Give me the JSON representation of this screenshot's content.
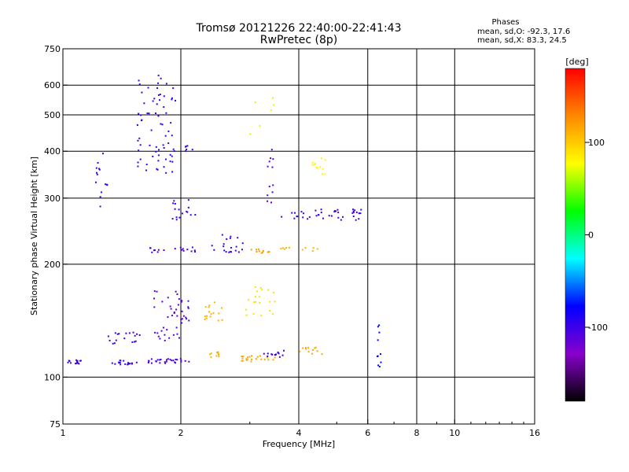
{
  "chart_data": {
    "type": "scatter",
    "title": "Tromsø 20121226 22:40:00-22:41:43",
    "subtitle": "RwPretec (8p)",
    "xlabel": "Frequency [MHz]",
    "ylabel": "Stationary phase Virtual Height [km]",
    "x_scale": "log",
    "y_scale": "log",
    "xlim": [
      1,
      16
    ],
    "ylim": [
      75,
      750
    ],
    "grid": true,
    "x_ticks": [
      1,
      2,
      4,
      6,
      8,
      10,
      16
    ],
    "x_tick_labels": [
      "1",
      "2",
      "4",
      "6",
      "8",
      "10",
      "16"
    ],
    "x_grid": [
      2,
      4,
      6,
      8,
      10
    ],
    "y_ticks": [
      75,
      100,
      200,
      300,
      400,
      500,
      600,
      750
    ],
    "y_tick_labels": [
      "75",
      "100",
      "200",
      "300",
      "400",
      "500",
      "600",
      "750"
    ],
    "y_grid": [
      100,
      200,
      300,
      400,
      500,
      600
    ],
    "stats": {
      "heading": "Phases",
      "line_o": "mean, sd,O: -92.3, 17.6",
      "line_x": "mean, sd,X: 83.3, 24.5"
    },
    "colorbar": {
      "label": "[deg]",
      "range": [
        -180,
        180
      ],
      "ticks": [
        100,
        0,
        -100
      ],
      "tick_labels": [
        "100",
        "0",
        "-100"
      ],
      "colormap": "rainbow",
      "stops": [
        "#000000",
        "#8800cc",
        "#0000ff",
        "#00ffff",
        "#00ff00",
        "#ffff00",
        "#ff8800",
        "#ff0000"
      ]
    },
    "series_note_color_encodes": "phase_deg",
    "point_groups": [
      {
        "x_range": [
          1.02,
          1.12
        ],
        "y_range": [
          108,
          111
        ],
        "phase": -100,
        "count": 14
      },
      {
        "x_range": [
          1.3,
          1.55
        ],
        "y_range": [
          108,
          111
        ],
        "phase": -100,
        "count": 18
      },
      {
        "x_range": [
          1.65,
          2.1
        ],
        "y_range": [
          108,
          112
        ],
        "phase": -105,
        "count": 28
      },
      {
        "x_range": [
          2.3,
          2.6
        ],
        "y_range": [
          113,
          117
        ],
        "phase": 110,
        "count": 10
      },
      {
        "x_range": [
          2.8,
          3.5
        ],
        "y_range": [
          110,
          114
        ],
        "phase": 115,
        "count": 22
      },
      {
        "x_range": [
          3.2,
          3.7
        ],
        "y_range": [
          113,
          118
        ],
        "phase": -100,
        "count": 14
      },
      {
        "x_range": [
          4.0,
          4.6
        ],
        "y_range": [
          115,
          120
        ],
        "phase": 115,
        "count": 12
      },
      {
        "x_range": [
          1.3,
          1.6
        ],
        "y_range": [
          122,
          132
        ],
        "phase": -100,
        "count": 18
      },
      {
        "x_range": [
          1.7,
          2.1
        ],
        "y_range": [
          125,
          170
        ],
        "phase": -110,
        "count": 45
      },
      {
        "x_range": [
          2.3,
          2.6
        ],
        "y_range": [
          140,
          160
        ],
        "phase": 110,
        "count": 16
      },
      {
        "x_range": [
          2.9,
          3.5
        ],
        "y_range": [
          145,
          175
        ],
        "phase": 90,
        "count": 20
      },
      {
        "x_range": [
          1.6,
          2.2
        ],
        "y_range": [
          215,
          222
        ],
        "phase": -105,
        "count": 18
      },
      {
        "x_range": [
          2.4,
          2.9
        ],
        "y_range": [
          215,
          240
        ],
        "phase": -100,
        "count": 20
      },
      {
        "x_range": [
          3.0,
          3.4
        ],
        "y_range": [
          214,
          220
        ],
        "phase": 120,
        "count": 10
      },
      {
        "x_range": [
          3.5,
          4.6
        ],
        "y_range": [
          216,
          222
        ],
        "phase": 110,
        "count": 10
      },
      {
        "x_range": [
          3.6,
          5.8
        ],
        "y_range": [
          262,
          280
        ],
        "phase": -100,
        "count": 40
      },
      {
        "x_range": [
          4.3,
          4.7
        ],
        "y_range": [
          345,
          390
        ],
        "phase": 80,
        "count": 12
      },
      {
        "x_range": [
          1.55,
          1.95
        ],
        "y_range": [
          350,
          650
        ],
        "phase": -100,
        "count": 70
      },
      {
        "x_range": [
          2.05,
          2.15
        ],
        "y_range": [
          400,
          415
        ],
        "phase": -100,
        "count": 6
      },
      {
        "x_range": [
          1.2,
          1.3
        ],
        "y_range": [
          280,
          410
        ],
        "phase": -100,
        "count": 14
      },
      {
        "x_range": [
          3.3,
          3.45
        ],
        "y_range": [
          290,
          410
        ],
        "phase": -110,
        "count": 12
      },
      {
        "x_range": [
          1.9,
          2.2
        ],
        "y_range": [
          260,
          300
        ],
        "phase": -100,
        "count": 16
      },
      {
        "x_range": [
          3.0,
          3.45
        ],
        "y_range": [
          440,
          560
        ],
        "phase": 70,
        "count": 6
      },
      {
        "x_range": [
          6.2,
          6.5
        ],
        "y_range": [
          105,
          140
        ],
        "phase": -80,
        "count": 10
      }
    ]
  }
}
